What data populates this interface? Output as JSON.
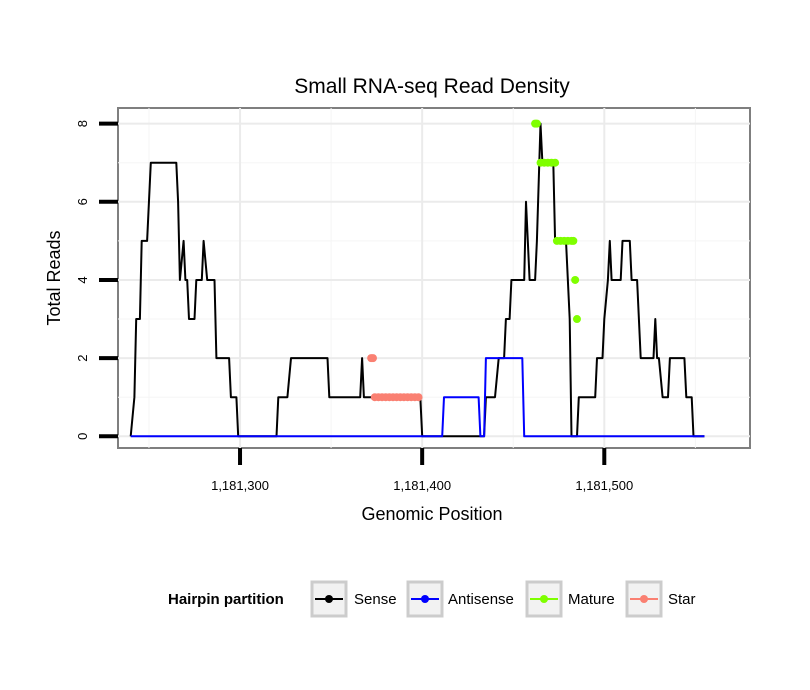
{
  "chart_data": {
    "type": "line",
    "title": "Small RNA-seq Read Density",
    "xlabel": "Genomic Position",
    "ylabel": "Total Reads",
    "xlim": [
      1181233,
      1181580
    ],
    "ylim": [
      -0.3,
      8.4
    ],
    "x_ticks": [
      {
        "value": 1181300,
        "label": "1,181,300"
      },
      {
        "value": 1181400,
        "label": "1,181,400"
      },
      {
        "value": 1181500,
        "label": "1,181,500"
      }
    ],
    "y_ticks": [
      {
        "value": 0,
        "label": "0"
      },
      {
        "value": 2,
        "label": "2"
      },
      {
        "value": 4,
        "label": "4"
      },
      {
        "value": 6,
        "label": "6"
      },
      {
        "value": 8,
        "label": "8"
      }
    ],
    "legend": {
      "title": "Hairpin partition",
      "position": "bottom",
      "items": [
        {
          "label": "Sense",
          "color": "#000000"
        },
        {
          "label": "Antisense",
          "color": "#0000ff"
        },
        {
          "label": "Mature",
          "color": "#7fff00"
        },
        {
          "label": "Star",
          "color": "#fa8072"
        }
      ]
    },
    "series": [
      {
        "name": "Sense",
        "color": "#000000",
        "style": "line",
        "points": [
          [
            1181240,
            0
          ],
          [
            1181242,
            1
          ],
          [
            1181243,
            3
          ],
          [
            1181245,
            3
          ],
          [
            1181246,
            5
          ],
          [
            1181249,
            5
          ],
          [
            1181251,
            7
          ],
          [
            1181265,
            7
          ],
          [
            1181266,
            6
          ],
          [
            1181267,
            4
          ],
          [
            1181269,
            5
          ],
          [
            1181270,
            4
          ],
          [
            1181271,
            4
          ],
          [
            1181272,
            3
          ],
          [
            1181275,
            3
          ],
          [
            1181276,
            4
          ],
          [
            1181279,
            4
          ],
          [
            1181280,
            5
          ],
          [
            1181282,
            4
          ],
          [
            1181286,
            4
          ],
          [
            1181287,
            2
          ],
          [
            1181294,
            2
          ],
          [
            1181295,
            1
          ],
          [
            1181298,
            1
          ],
          [
            1181299,
            0
          ],
          [
            1181320,
            0
          ],
          [
            1181321,
            1
          ],
          [
            1181326,
            1
          ],
          [
            1181328,
            2
          ],
          [
            1181348,
            2
          ],
          [
            1181349,
            1
          ],
          [
            1181366,
            1
          ],
          [
            1181367,
            2
          ],
          [
            1181368,
            1
          ],
          [
            1181399,
            1
          ],
          [
            1181400,
            0
          ],
          [
            1181434,
            0
          ],
          [
            1181435,
            1
          ],
          [
            1181440,
            1
          ],
          [
            1181442,
            2
          ],
          [
            1181445,
            2
          ],
          [
            1181446,
            3
          ],
          [
            1181448,
            3
          ],
          [
            1181449,
            4
          ],
          [
            1181456,
            4
          ],
          [
            1181457,
            6
          ],
          [
            1181458,
            5
          ],
          [
            1181459,
            4
          ],
          [
            1181462,
            4
          ],
          [
            1181463,
            5
          ],
          [
            1181465,
            8
          ],
          [
            1181466,
            7
          ],
          [
            1181472,
            7
          ],
          [
            1181473,
            5
          ],
          [
            1181479,
            5
          ],
          [
            1181481,
            3
          ],
          [
            1181482,
            0
          ],
          [
            1181485,
            0
          ],
          [
            1181486,
            1
          ],
          [
            1181495,
            1
          ],
          [
            1181496,
            2
          ],
          [
            1181499,
            2
          ],
          [
            1181500,
            3
          ],
          [
            1181502,
            4
          ],
          [
            1181503,
            5
          ],
          [
            1181504,
            4
          ],
          [
            1181509,
            4
          ],
          [
            1181510,
            5
          ],
          [
            1181514,
            5
          ],
          [
            1181515,
            4
          ],
          [
            1181518,
            4
          ],
          [
            1181519,
            3
          ],
          [
            1181520,
            2
          ],
          [
            1181527,
            2
          ],
          [
            1181528,
            3
          ],
          [
            1181529,
            2
          ],
          [
            1181530,
            2
          ],
          [
            1181532,
            1
          ],
          [
            1181535,
            1
          ],
          [
            1181536,
            2
          ],
          [
            1181544,
            2
          ],
          [
            1181545,
            1
          ],
          [
            1181548,
            1
          ],
          [
            1181549,
            0
          ],
          [
            1181555,
            0
          ]
        ]
      },
      {
        "name": "Antisense",
        "color": "#0000ff",
        "style": "line",
        "points": [
          [
            1181240,
            0
          ],
          [
            1181411,
            0
          ],
          [
            1181412,
            1
          ],
          [
            1181431,
            1
          ],
          [
            1181432,
            0
          ],
          [
            1181434,
            0
          ],
          [
            1181435,
            2
          ],
          [
            1181455,
            2
          ],
          [
            1181456,
            0
          ],
          [
            1181555,
            0
          ]
        ]
      },
      {
        "name": "Star",
        "color": "#fa8072",
        "style": "points",
        "points": [
          [
            1181372,
            2
          ],
          [
            1181373,
            2
          ],
          [
            1181374,
            1
          ],
          [
            1181376,
            1
          ],
          [
            1181378,
            1
          ],
          [
            1181380,
            1
          ],
          [
            1181382,
            1
          ],
          [
            1181384,
            1
          ],
          [
            1181386,
            1
          ],
          [
            1181388,
            1
          ],
          [
            1181390,
            1
          ],
          [
            1181392,
            1
          ],
          [
            1181394,
            1
          ],
          [
            1181396,
            1
          ],
          [
            1181398,
            1
          ]
        ]
      },
      {
        "name": "Mature",
        "color": "#7fff00",
        "style": "points",
        "points": [
          [
            1181462,
            8
          ],
          [
            1181463,
            8
          ],
          [
            1181465,
            7
          ],
          [
            1181467,
            7
          ],
          [
            1181469,
            7
          ],
          [
            1181471,
            7
          ],
          [
            1181473,
            7
          ],
          [
            1181474,
            5
          ],
          [
            1181476,
            5
          ],
          [
            1181478,
            5
          ],
          [
            1181480,
            5
          ],
          [
            1181482,
            5
          ],
          [
            1181483,
            5
          ],
          [
            1181484,
            4
          ],
          [
            1181485,
            3
          ]
        ]
      }
    ]
  }
}
